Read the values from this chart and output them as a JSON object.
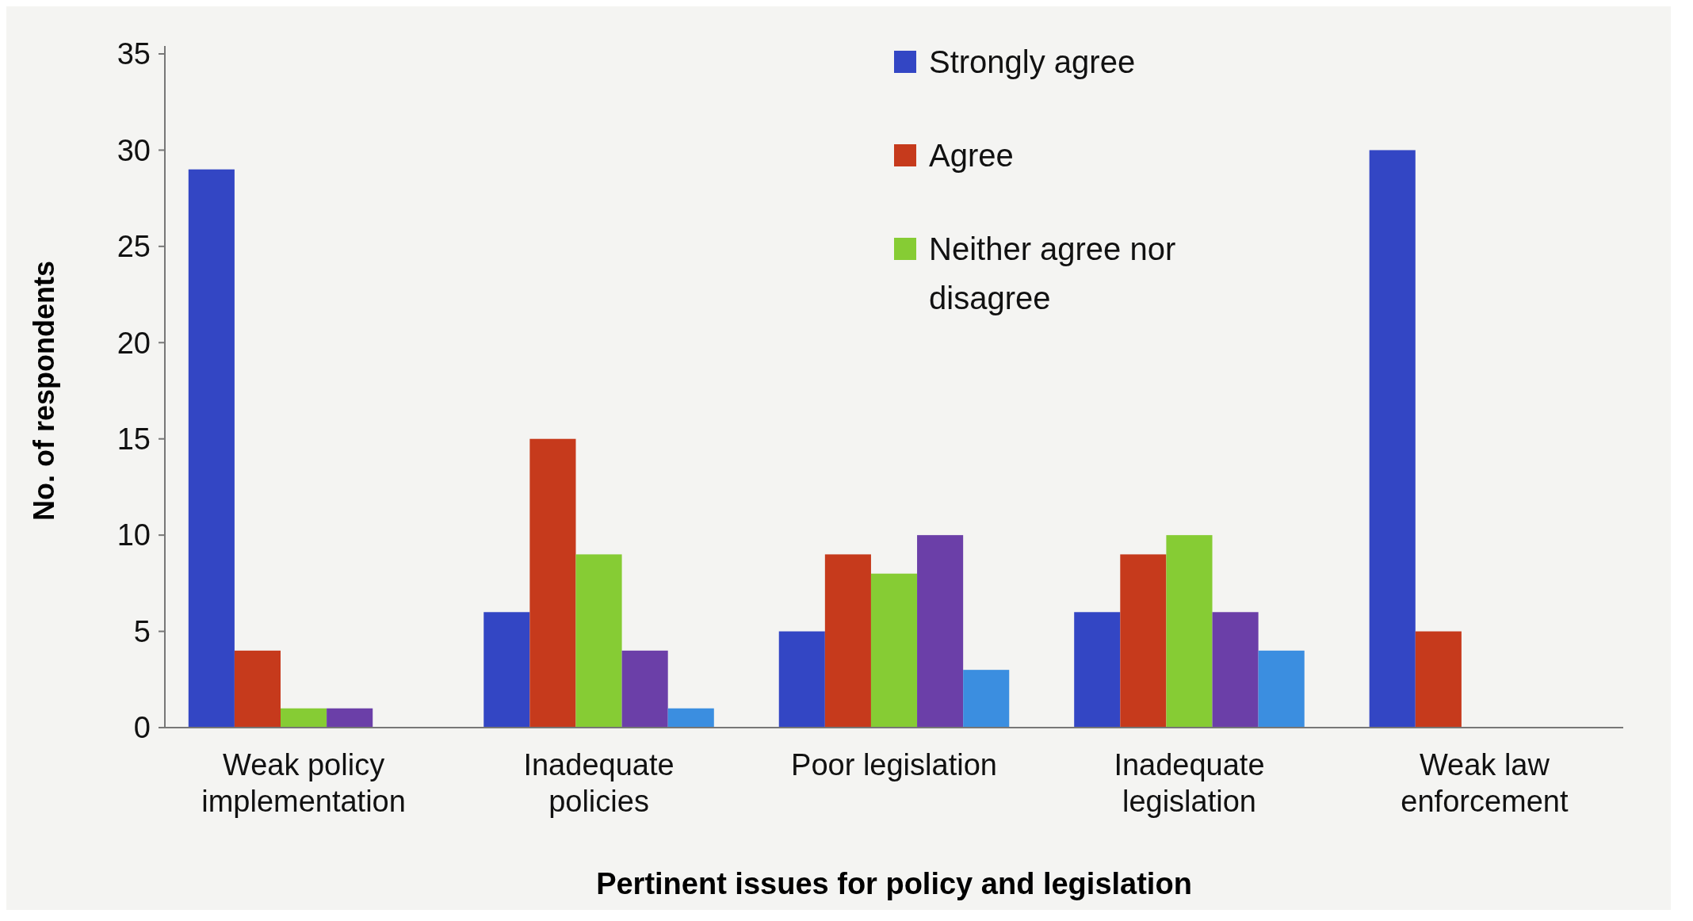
{
  "chart_data": {
    "type": "bar",
    "xlabel": "Pertinent issues for policy and legislation",
    "ylabel": "No. of respondents",
    "categories": [
      "Weak policy implementation",
      "Inadequate policies",
      "Poor legislation",
      "Inadequate legislation",
      "Weak law enforcement"
    ],
    "series": [
      {
        "name": "Strongly agree",
        "color": "#3346c4",
        "values": [
          29,
          6,
          5,
          6,
          30
        ]
      },
      {
        "name": "Agree",
        "color": "#c63a1c",
        "values": [
          4,
          15,
          9,
          9,
          5
        ]
      },
      {
        "name": "Neither agree nor disagree",
        "color": "#86cc34",
        "values": [
          1,
          9,
          8,
          10,
          null
        ]
      },
      {
        "color": "#6b3fa8",
        "values": [
          1,
          4,
          10,
          6,
          null
        ]
      },
      {
        "color": "#3b8ee0",
        "values": [
          null,
          1,
          3,
          4,
          null
        ]
      }
    ],
    "ylim": [
      0,
      35
    ],
    "yticks": [
      0,
      5,
      10,
      15,
      20,
      25,
      30,
      35
    ],
    "grid": false,
    "legend": "top"
  }
}
